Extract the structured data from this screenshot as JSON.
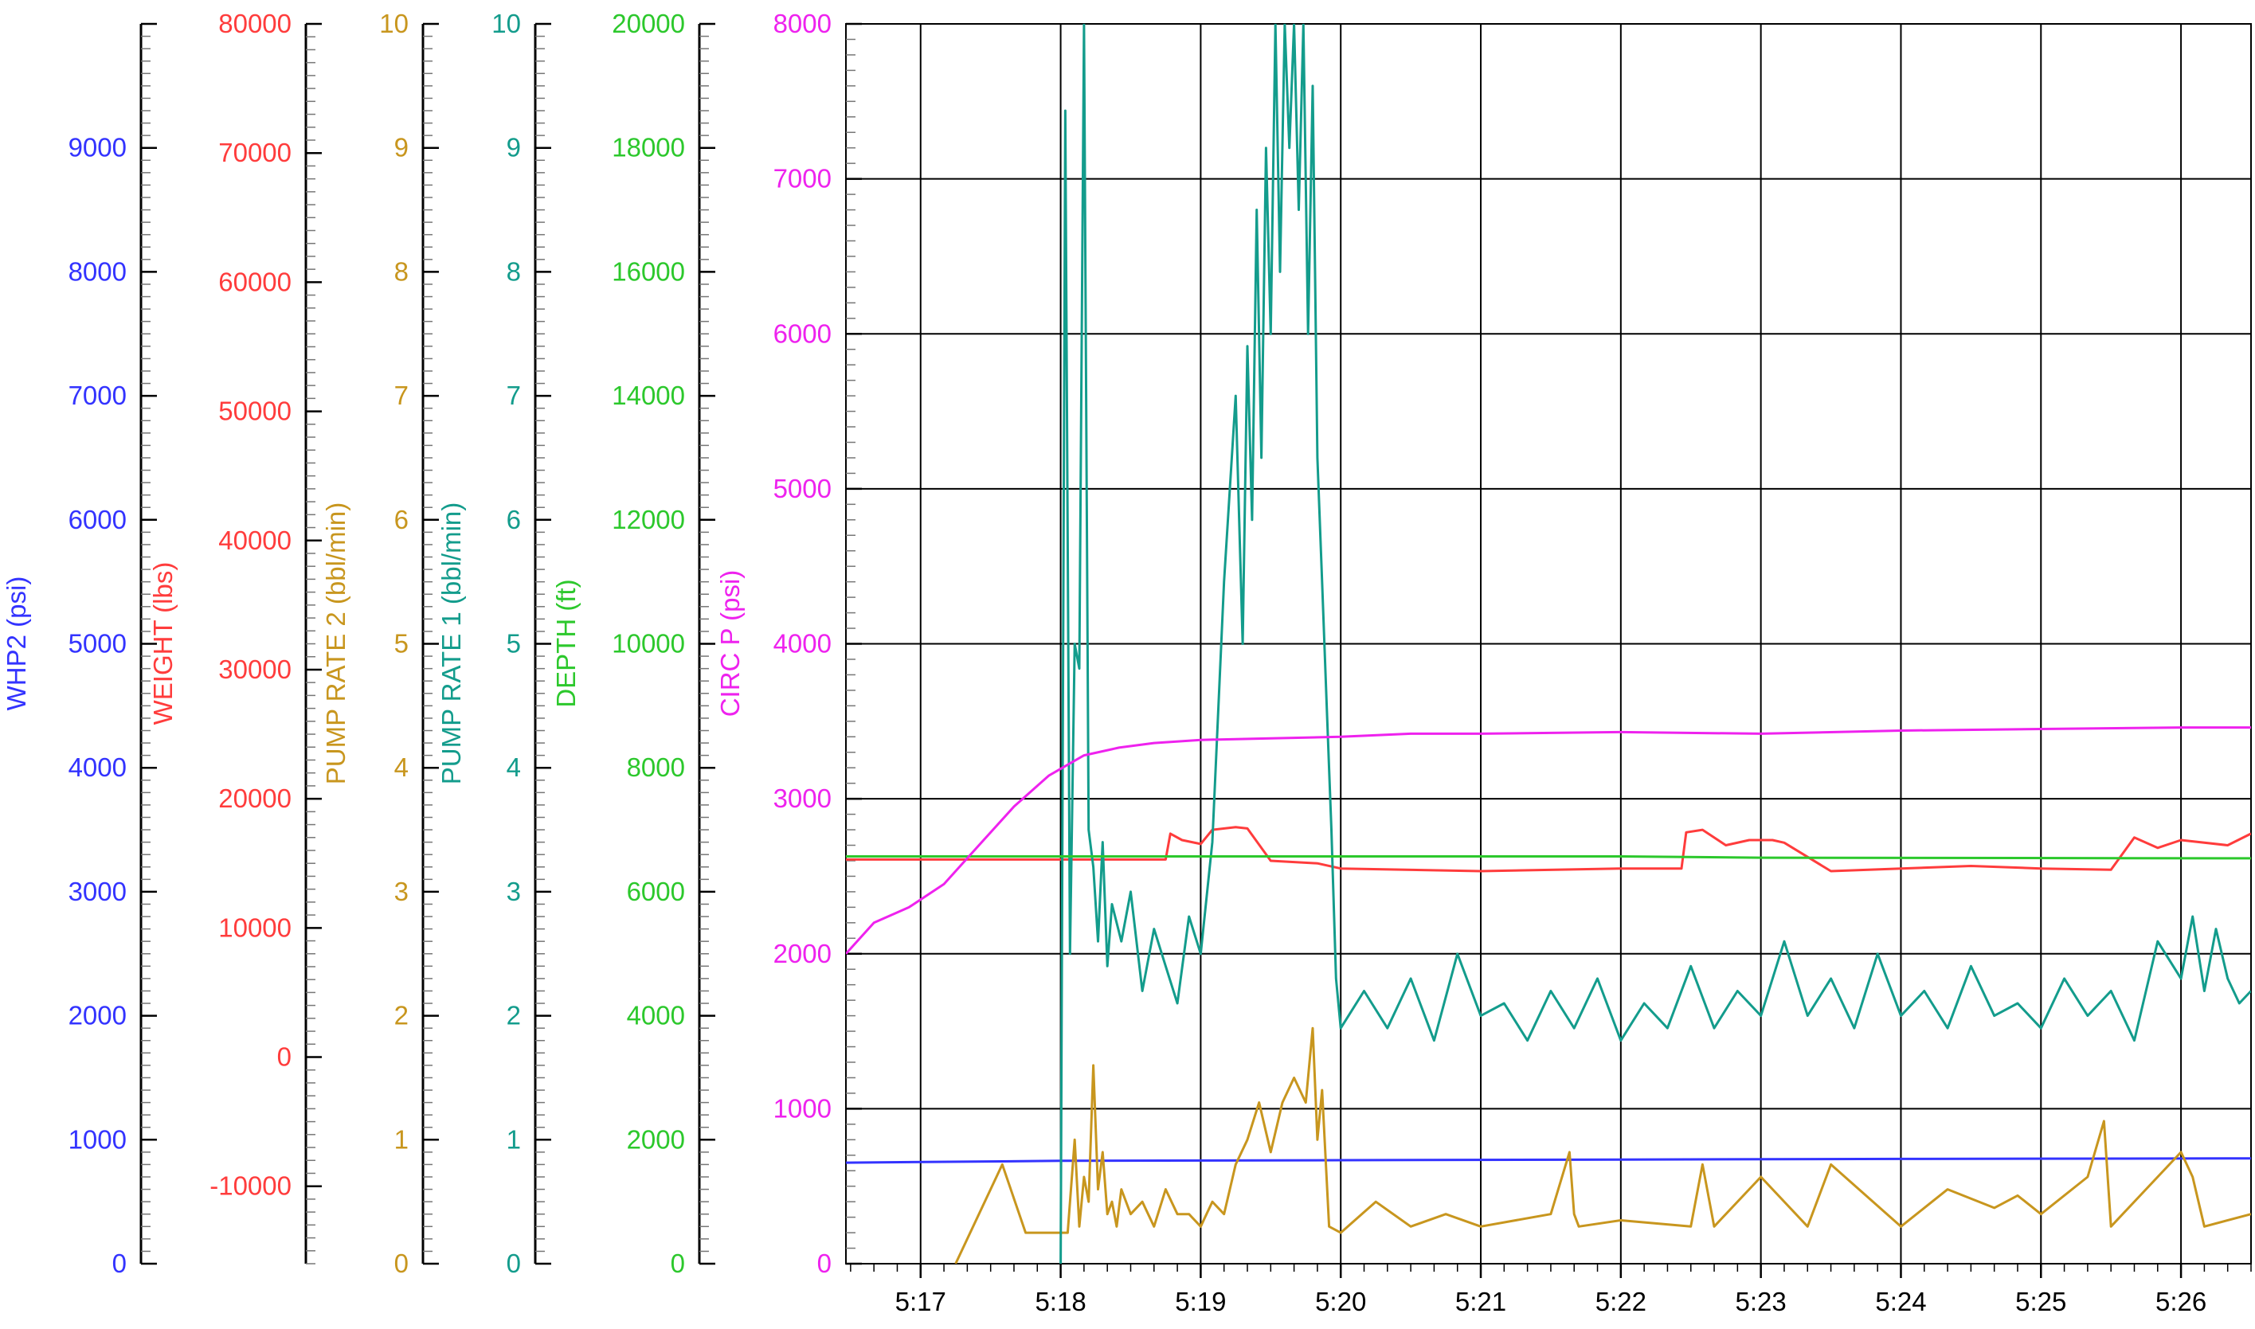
{
  "colors": {
    "whp2": "#3333ff",
    "weight": "#ff3c3c",
    "pump_rate_2": "#c8961e",
    "pump_rate_1": "#139c8c",
    "depth": "#2cc82c",
    "circ_p": "#ee22ee",
    "axis": "#000000",
    "grid": "#000000",
    "background": "#ffffff"
  },
  "chart_data": {
    "type": "line",
    "grid": true,
    "legend": "none",
    "x_unit": "time (h:mm)",
    "xlim": [
      "5:16:28",
      "5:26:30"
    ],
    "x_ticks": [
      "5:17",
      "5:18",
      "5:19",
      "5:20",
      "5:21",
      "5:22",
      "5:23",
      "5:24",
      "5:25",
      "5:26"
    ],
    "axes": [
      {
        "id": "whp2",
        "label": "WHP2  (psi)",
        "range": [
          0,
          10000
        ],
        "tick_labels": [
          "0",
          "1000",
          "2000",
          "3000",
          "4000",
          "5000",
          "6000",
          "7000",
          "8000",
          "9000"
        ],
        "color_key": "whp2"
      },
      {
        "id": "weight",
        "label": "WEIGHT  (lbs)",
        "range": [
          -16000,
          80000
        ],
        "tick_labels": [
          "-10000",
          "0",
          "10000",
          "20000",
          "30000",
          "40000",
          "50000",
          "60000",
          "70000",
          "80000"
        ],
        "color_key": "weight"
      },
      {
        "id": "pump_rate_2",
        "label": "PUMP RATE 2  (bbl/min)",
        "range": [
          0,
          10
        ],
        "tick_labels": [
          "0",
          "1",
          "2",
          "3",
          "4",
          "5",
          "6",
          "7",
          "8",
          "9",
          "10"
        ],
        "color_key": "pump_rate_2"
      },
      {
        "id": "pump_rate_1",
        "label": "PUMP RATE 1  (bbl/min)",
        "range": [
          0,
          10
        ],
        "tick_labels": [
          "0",
          "1",
          "2",
          "3",
          "4",
          "5",
          "6",
          "7",
          "8",
          "9",
          "10"
        ],
        "color_key": "pump_rate_1"
      },
      {
        "id": "depth",
        "label": "DEPTH  (ft)",
        "range": [
          0,
          20000
        ],
        "tick_labels": [
          "0",
          "2000",
          "4000",
          "6000",
          "8000",
          "10000",
          "12000",
          "14000",
          "16000",
          "18000",
          "20000"
        ],
        "color_key": "depth"
      },
      {
        "id": "circ_p",
        "label": "CIRC P  (psi)",
        "range": [
          0,
          8000
        ],
        "tick_labels": [
          "0",
          "1000",
          "2000",
          "3000",
          "4000",
          "5000",
          "6000",
          "7000",
          "8000"
        ],
        "color_key": "circ_p"
      }
    ],
    "series": [
      {
        "axis": "whp2",
        "color_key": "whp2",
        "x": [
          "5:16:28",
          "5:18:00",
          "5:20:00",
          "5:22:00",
          "5:24:00",
          "5:26:30"
        ],
        "y": [
          815,
          830,
          835,
          840,
          845,
          850
        ]
      },
      {
        "axis": "weight",
        "color_key": "weight",
        "x": [
          "5:16:28",
          "5:18:45",
          "5:18:47",
          "5:18:52",
          "5:19:00",
          "5:19:05",
          "5:19:15",
          "5:19:20",
          "5:19:30",
          "5:19:50",
          "5:20:00",
          "5:21:00",
          "5:22:00",
          "5:22:26",
          "5:22:28",
          "5:22:35",
          "5:22:45",
          "5:22:55",
          "5:23:05",
          "5:23:10",
          "5:23:30",
          "5:24:00",
          "5:24:30",
          "5:25:00",
          "5:25:30",
          "5:25:40",
          "5:25:50",
          "5:26:00",
          "5:26:20",
          "5:26:30"
        ],
        "y": [
          15300,
          15300,
          17300,
          16800,
          16500,
          17600,
          17800,
          17700,
          15200,
          15000,
          14600,
          14400,
          14600,
          14600,
          17400,
          17600,
          16400,
          16800,
          16800,
          16600,
          14400,
          14600,
          14800,
          14600,
          14500,
          17000,
          16200,
          16800,
          16400,
          17300
        ]
      },
      {
        "axis": "pump_rate_2",
        "color_key": "pump_rate_2",
        "x": [
          "5:17:15",
          "5:17:35",
          "5:17:45",
          "5:18:03",
          "5:18:06",
          "5:18:08",
          "5:18:10",
          "5:18:12",
          "5:18:14",
          "5:18:16",
          "5:18:18",
          "5:18:20",
          "5:18:22",
          "5:18:24",
          "5:18:26",
          "5:18:30",
          "5:18:35",
          "5:18:40",
          "5:18:45",
          "5:18:50",
          "5:18:55",
          "5:19:00",
          "5:19:05",
          "5:19:10",
          "5:19:15",
          "5:19:20",
          "5:19:25",
          "5:19:30",
          "5:19:35",
          "5:19:40",
          "5:19:45",
          "5:19:48",
          "5:19:50",
          "5:19:52",
          "5:19:55",
          "5:20:00",
          "5:20:15",
          "5:20:30",
          "5:20:45",
          "5:21:00",
          "5:21:30",
          "5:21:38",
          "5:21:40",
          "5:21:42",
          "5:22:00",
          "5:22:30",
          "5:22:35",
          "5:22:40",
          "5:23:00",
          "5:23:20",
          "5:23:30",
          "5:24:00",
          "5:24:20",
          "5:24:40",
          "5:24:50",
          "5:25:00",
          "5:25:20",
          "5:25:27",
          "5:25:30",
          "5:25:45",
          "5:26:00",
          "5:26:05",
          "5:26:10",
          "5:26:30"
        ],
        "y": [
          0,
          0.8,
          0.25,
          0.25,
          1.0,
          0.3,
          0.7,
          0.5,
          1.6,
          0.6,
          0.9,
          0.4,
          0.5,
          0.3,
          0.6,
          0.4,
          0.5,
          0.3,
          0.6,
          0.4,
          0.4,
          0.3,
          0.5,
          0.4,
          0.8,
          1.0,
          1.3,
          0.9,
          1.3,
          1.5,
          1.3,
          1.9,
          1.0,
          1.4,
          0.3,
          0.25,
          0.5,
          0.3,
          0.4,
          0.3,
          0.4,
          0.9,
          0.4,
          0.3,
          0.35,
          0.3,
          0.8,
          0.3,
          0.7,
          0.3,
          0.8,
          0.3,
          0.6,
          0.45,
          0.55,
          0.4,
          0.7,
          1.15,
          0.3,
          0.6,
          0.9,
          0.7,
          0.3,
          0.4
        ]
      },
      {
        "axis": "pump_rate_1",
        "color_key": "pump_rate_1",
        "x": [
          "5:18:00",
          "5:18:02",
          "5:18:04",
          "5:18:06",
          "5:18:08",
          "5:18:10",
          "5:18:12",
          "5:18:14",
          "5:18:16",
          "5:18:18",
          "5:18:20",
          "5:18:22",
          "5:18:26",
          "5:18:30",
          "5:18:35",
          "5:18:40",
          "5:18:45",
          "5:18:50",
          "5:18:55",
          "5:19:00",
          "5:19:05",
          "5:19:10",
          "5:19:15",
          "5:19:18",
          "5:19:20",
          "5:19:22",
          "5:19:24",
          "5:19:26",
          "5:19:28",
          "5:19:30",
          "5:19:32",
          "5:19:34",
          "5:19:36",
          "5:19:38",
          "5:19:40",
          "5:19:42",
          "5:19:44",
          "5:19:46",
          "5:19:48",
          "5:19:50",
          "5:19:52",
          "5:19:54",
          "5:19:56",
          "5:19:58",
          "5:20:00",
          "5:20:10",
          "5:20:20",
          "5:20:30",
          "5:20:40",
          "5:20:50",
          "5:21:00",
          "5:21:10",
          "5:21:20",
          "5:21:30",
          "5:21:40",
          "5:21:50",
          "5:22:00",
          "5:22:10",
          "5:22:20",
          "5:22:30",
          "5:22:40",
          "5:22:50",
          "5:23:00",
          "5:23:10",
          "5:23:20",
          "5:23:30",
          "5:23:40",
          "5:23:50",
          "5:24:00",
          "5:24:10",
          "5:24:20",
          "5:24:30",
          "5:24:40",
          "5:24:50",
          "5:25:00",
          "5:25:10",
          "5:25:20",
          "5:25:30",
          "5:25:40",
          "5:25:50",
          "5:26:00",
          "5:26:05",
          "5:26:10",
          "5:26:15",
          "5:26:20",
          "5:26:25",
          "5:26:30"
        ],
        "y": [
          0,
          9.3,
          2.5,
          5.0,
          4.8,
          10.0,
          3.5,
          3.2,
          2.6,
          3.4,
          2.4,
          2.9,
          2.6,
          3.0,
          2.2,
          2.7,
          2.4,
          2.1,
          2.8,
          2.5,
          3.4,
          5.5,
          7.0,
          5.0,
          7.4,
          6.0,
          8.5,
          6.5,
          9.0,
          7.5,
          10.0,
          8.0,
          10.0,
          9.0,
          10.0,
          8.5,
          10.0,
          7.5,
          9.5,
          6.5,
          5.5,
          4.5,
          3.5,
          2.3,
          1.9,
          2.2,
          1.9,
          2.3,
          1.8,
          2.5,
          2.0,
          2.1,
          1.8,
          2.2,
          1.9,
          2.3,
          1.8,
          2.1,
          1.9,
          2.4,
          1.9,
          2.2,
          2.0,
          2.6,
          2.0,
          2.3,
          1.9,
          2.5,
          2.0,
          2.2,
          1.9,
          2.4,
          2.0,
          2.1,
          1.9,
          2.3,
          2.0,
          2.2,
          1.8,
          2.6,
          2.3,
          2.8,
          2.2,
          2.7,
          2.3,
          2.1,
          2.2
        ]
      },
      {
        "axis": "depth",
        "color_key": "depth",
        "x": [
          "5:16:28",
          "5:22:00",
          "5:23:00",
          "5:26:30"
        ],
        "y": [
          6570,
          6570,
          6550,
          6540
        ]
      },
      {
        "axis": "circ_p",
        "color_key": "circ_p",
        "x": [
          "5:16:28",
          "5:16:40",
          "5:16:55",
          "5:17:10",
          "5:17:25",
          "5:17:40",
          "5:17:55",
          "5:18:10",
          "5:18:25",
          "5:18:40",
          "5:19:00",
          "5:19:30",
          "5:20:00",
          "5:20:30",
          "5:21:00",
          "5:22:00",
          "5:23:00",
          "5:24:00",
          "5:25:00",
          "5:26:00",
          "5:26:30"
        ],
        "y": [
          2000,
          2200,
          2300,
          2450,
          2700,
          2950,
          3150,
          3280,
          3330,
          3360,
          3380,
          3390,
          3400,
          3420,
          3420,
          3430,
          3420,
          3440,
          3450,
          3460,
          3460
        ]
      }
    ]
  }
}
